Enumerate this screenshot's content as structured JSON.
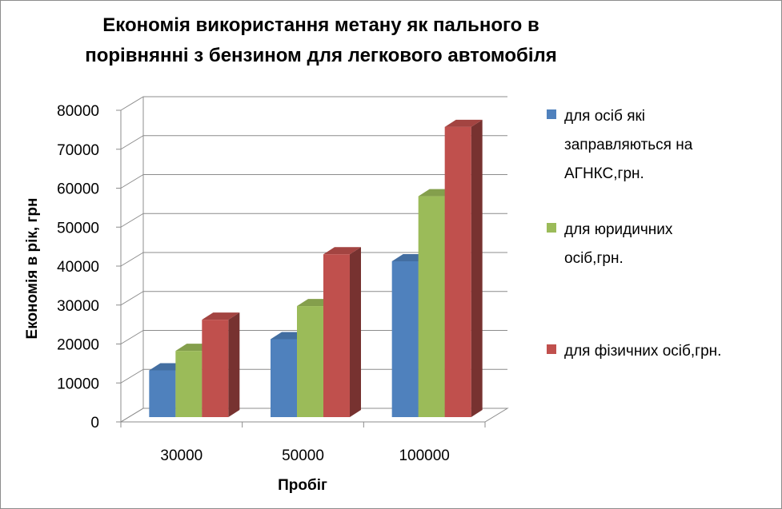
{
  "chart_data": {
    "type": "bar",
    "title": "Економія використання метану як пального в порівнянні з бензином  для легкового автомобіля",
    "title_lines": [
      "Економія використання метану як пального в",
      "порівнянні з бензином  для легкового автомобіля"
    ],
    "xlabel": "Пробіг",
    "ylabel": "Економія в рік, грн",
    "categories": [
      "30000",
      "50000",
      "100000"
    ],
    "series": [
      {
        "name": "для осіб які заправляються на АГНКС,грн.",
        "name_lines": [
          "для осіб які",
          "заправляються на",
          "АГНКС,грн."
        ],
        "color": "#4f81bd",
        "values": [
          12000,
          20000,
          40000
        ]
      },
      {
        "name": "для юридичних осіб,грн.",
        "name_lines": [
          "для юридичних",
          "осіб,грн."
        ],
        "color": "#9bbb59",
        "values": [
          17000,
          28500,
          56700
        ]
      },
      {
        "name": "для фізичних осіб,грн.",
        "name_lines": [
          "для фізичних осіб,грн."
        ],
        "color": "#c0504d",
        "values": [
          25000,
          41800,
          74500
        ]
      }
    ],
    "ylim": [
      0,
      80000
    ],
    "yticks": [
      "0",
      "10000",
      "20000",
      "30000",
      "40000",
      "50000",
      "60000",
      "70000",
      "80000"
    ],
    "grid": true,
    "legend": "right",
    "style": "3d-clustered-column"
  }
}
